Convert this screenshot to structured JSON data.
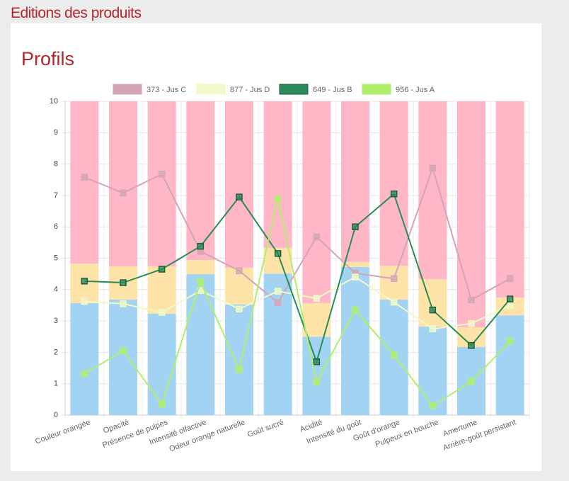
{
  "header": {
    "title": "Editions des produits"
  },
  "chart_data": {
    "type": "combo",
    "title": "Profils",
    "categories": [
      "Couleur orangée",
      "Opacité",
      "Présence de pulpes",
      "Intensité olfactive",
      "Odeur orange naturelle",
      "Goût sucré",
      "Acidité",
      "Intensité du goût",
      "Goût d'orange",
      "Pulpeux en bouche",
      "Amertume",
      "Arrière-goût persistant"
    ],
    "bands": [
      {
        "color": "#a3d3f2",
        "values": [
          3.57,
          3.68,
          3.23,
          4.49,
          3.52,
          4.51,
          2.5,
          4.72,
          3.68,
          2.82,
          2.17,
          3.18
        ]
      },
      {
        "color": "#fde3a7",
        "values": [
          1.26,
          1.06,
          1.51,
          0.45,
          1.18,
          0.82,
          1.07,
          0.16,
          1.08,
          1.51,
          0.63,
          0.57
        ]
      },
      {
        "color": "#ffb6c6",
        "values": [
          5.17,
          5.26,
          5.26,
          5.06,
          5.3,
          4.67,
          6.43,
          5.12,
          5.24,
          5.67,
          7.2,
          6.25
        ]
      }
    ],
    "series": [
      {
        "name": "373 - Jus C",
        "color": "#d4a5b8",
        "values": [
          7.58,
          7.08,
          7.68,
          5.22,
          4.6,
          3.58,
          5.68,
          4.52,
          4.35,
          7.87,
          3.67,
          4.35
        ]
      },
      {
        "name": "877 - Jus D",
        "color": "#f0f9c8",
        "values": [
          3.62,
          3.55,
          3.27,
          3.97,
          3.38,
          3.95,
          3.72,
          4.4,
          3.6,
          2.75,
          2.92,
          3.5
        ]
      },
      {
        "name": "649 - Jus B",
        "color": "#2a8c5a",
        "values": [
          4.27,
          4.22,
          4.65,
          5.38,
          6.95,
          5.15,
          1.7,
          6.0,
          7.05,
          3.35,
          2.22,
          3.7
        ]
      },
      {
        "name": "956 - Jus A",
        "color": "#b0ef6c",
        "values": [
          1.32,
          2.05,
          0.35,
          4.25,
          1.45,
          6.9,
          1.05,
          3.35,
          1.92,
          0.3,
          1.07,
          2.35
        ]
      }
    ],
    "ylim": [
      0,
      10
    ],
    "yticks": [
      0,
      1,
      2,
      3,
      4,
      5,
      6,
      7,
      8,
      9,
      10
    ],
    "grid": true
  }
}
